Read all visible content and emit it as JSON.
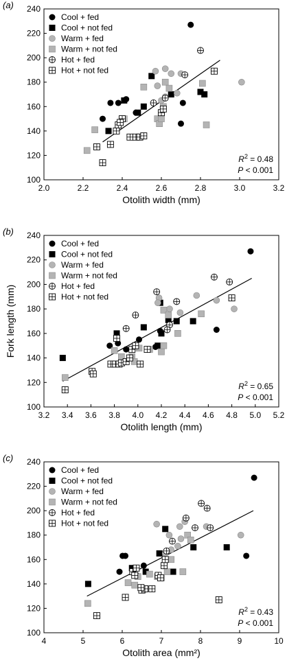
{
  "figure": {
    "panel_labels": [
      "(a)",
      "(b)",
      "(c)"
    ],
    "legend": [
      {
        "key": "cool_fed",
        "label": "Cool + fed"
      },
      {
        "key": "cool_not_fed",
        "label": "Cool + not fed"
      },
      {
        "key": "warm_fed",
        "label": "Warm + fed"
      },
      {
        "key": "warm_not_fed",
        "label": "Warm + not fed"
      },
      {
        "key": "hot_fed",
        "label": "Hot + fed"
      },
      {
        "key": "hot_not_fed",
        "label": "Hot + not fed"
      }
    ],
    "colors": {
      "cool": "#000000",
      "warm_fill": "#b4b4b4",
      "warm_stroke": "#8a8a8a",
      "hot_fill": "#ffffff"
    }
  },
  "chart_data": [
    {
      "type": "scatter",
      "panel": "(a)",
      "xlabel": "Otolith width (mm)",
      "ylabel": "",
      "xlim": [
        2.0,
        3.2
      ],
      "ylim": [
        100,
        240
      ],
      "xticks": [
        "2.0",
        "2.2",
        "2.4",
        "2.6",
        "2.8",
        "3.0",
        "3.2"
      ],
      "yticks": [
        "100",
        "120",
        "140",
        "160",
        "180",
        "200",
        "220",
        "240"
      ],
      "annotation": {
        "r2": "= 0.48",
        "p": "< 0.001"
      },
      "fit": {
        "x": [
          2.3,
          2.9
        ],
        "y": [
          131,
          198
        ]
      },
      "series": [
        {
          "key": "cool_fed",
          "x": [
            2.75,
            2.3,
            2.34,
            2.38,
            2.47,
            2.71,
            2.7,
            2.42
          ],
          "y": [
            227,
            150,
            163,
            163,
            155,
            163,
            146,
            166
          ]
        },
        {
          "key": "cool_not_fed",
          "x": [
            2.41,
            2.55,
            2.51,
            2.33,
            2.48,
            2.65,
            2.8,
            2.82
          ],
          "y": [
            165,
            185,
            160,
            140,
            155,
            170,
            172,
            170
          ]
        },
        {
          "key": "warm_fed",
          "x": [
            2.57,
            2.62,
            2.65,
            2.58,
            2.7,
            2.68,
            2.62,
            2.6,
            3.01
          ],
          "y": [
            189,
            191,
            187,
            177,
            187,
            171,
            168,
            165,
            180
          ]
        },
        {
          "key": "warm_not_fed",
          "x": [
            2.22,
            2.26,
            2.51,
            2.58,
            2.59,
            2.6,
            2.61,
            2.62,
            2.64,
            2.81,
            2.83,
            2.41
          ],
          "y": [
            124,
            141,
            176,
            150,
            146,
            150,
            160,
            180,
            175,
            179,
            145,
            150
          ]
        },
        {
          "key": "hot_fed",
          "x": [
            2.8,
            2.62,
            2.72,
            2.56
          ],
          "y": [
            206,
            167,
            186,
            163
          ]
        },
        {
          "key": "hot_not_fed",
          "x": [
            2.3,
            2.27,
            2.34,
            2.37,
            2.38,
            2.4,
            2.44,
            2.47,
            2.49,
            2.51,
            2.39,
            2.6,
            2.61,
            2.87
          ],
          "y": [
            114,
            127,
            129,
            140,
            145,
            150,
            135,
            135,
            135,
            136,
            147,
            155,
            158,
            189
          ]
        }
      ]
    },
    {
      "type": "scatter",
      "panel": "(b)",
      "xlabel": "Otolith length (mm)",
      "ylabel": "Fork length (mm)",
      "xlim": [
        3.2,
        5.2
      ],
      "ylim": [
        100,
        240
      ],
      "xticks": [
        "3.2",
        "3.4",
        "3.6",
        "3.8",
        "4.0",
        "4.2",
        "4.4",
        "4.6",
        "4.8",
        "5.0",
        "5.2"
      ],
      "yticks": [
        "100",
        "120",
        "140",
        "160",
        "180",
        "200",
        "220",
        "240"
      ],
      "annotation": {
        "r2": "= 0.65",
        "p": "< 0.001"
      },
      "fit": {
        "x": [
          3.36,
          4.97
        ],
        "y": [
          121,
          205
        ]
      },
      "series": [
        {
          "key": "cool_fed",
          "x": [
            4.96,
            3.76,
            3.9,
            4.01,
            4.15,
            4.67,
            3.83,
            4.19
          ],
          "y": [
            227,
            150,
            147,
            155,
            149,
            163,
            152,
            162
          ]
        },
        {
          "key": "cool_not_fed",
          "x": [
            3.36,
            3.82,
            4.05,
            4.2,
            4.26,
            4.33,
            4.47,
            4.17,
            4.19
          ],
          "y": [
            140,
            160,
            165,
            160,
            171,
            170,
            170,
            150,
            185
          ]
        },
        {
          "key": "warm_fed",
          "x": [
            4.18,
            4.27,
            4.36,
            4.5,
            4.67,
            4.82,
            4.17
          ],
          "y": [
            189,
            180,
            177,
            191,
            187,
            180,
            185
          ]
        },
        {
          "key": "warm_not_fed",
          "x": [
            3.38,
            3.8,
            3.95,
            4.01,
            4.1,
            4.2,
            4.22,
            4.26,
            4.34,
            4.54,
            3.97,
            4.22,
            3.86
          ],
          "y": [
            124,
            146,
            141,
            148,
            147,
            145,
            179,
            175,
            160,
            176,
            137,
            150,
            141
          ]
        },
        {
          "key": "hot_fed",
          "x": [
            4.65,
            4.78,
            4.16,
            4.33,
            4.27,
            3.98,
            3.9,
            4.25
          ],
          "y": [
            206,
            202,
            194,
            186,
            167,
            175,
            164,
            163
          ]
        },
        {
          "key": "hot_not_fed",
          "x": [
            3.38,
            3.61,
            3.62,
            3.77,
            3.81,
            3.84,
            3.86,
            3.9,
            3.93,
            3.95,
            3.98,
            4.02,
            4.08,
            4.8,
            3.82
          ],
          "y": [
            114,
            129,
            127,
            135,
            135,
            135,
            136,
            137,
            140,
            147,
            150,
            135,
            147,
            189,
            156
          ]
        }
      ]
    },
    {
      "type": "scatter",
      "panel": "(c)",
      "xlabel": "Otolith area (mm²)",
      "ylabel": "",
      "xlim": [
        4,
        10
      ],
      "ylim": [
        100,
        240
      ],
      "xticks": [
        "4",
        "5",
        "6",
        "7",
        "8",
        "9",
        "10"
      ],
      "yticks": [
        "100",
        "120",
        "140",
        "160",
        "180",
        "200",
        "220",
        "240"
      ],
      "annotation": {
        "r2": "= 0.43",
        "p": "< 0.001"
      },
      "fit": {
        "x": [
          5.1,
          9.35
        ],
        "y": [
          130,
          200
        ]
      },
      "series": [
        {
          "key": "cool_fed",
          "x": [
            9.37,
            5.93,
            6.01,
            6.08,
            6.55,
            9.17,
            6.37
          ],
          "y": [
            227,
            150,
            163,
            163,
            155,
            163,
            147
          ]
        },
        {
          "key": "cool_not_fed",
          "x": [
            5.13,
            6.25,
            6.6,
            7.1,
            7.3,
            7.82,
            8.67,
            6.95
          ],
          "y": [
            140,
            153,
            150,
            185,
            150,
            170,
            170,
            165
          ]
        },
        {
          "key": "warm_fed",
          "x": [
            6.88,
            7.2,
            7.47,
            7.6,
            8.15,
            9.03,
            7.5,
            7.42,
            7.25,
            7.1
          ],
          "y": [
            189,
            180,
            187,
            191,
            187,
            180,
            177,
            171,
            168,
            165
          ]
        },
        {
          "key": "warm_not_fed",
          "x": [
            5.12,
            6.15,
            6.32,
            6.52,
            6.9,
            7.0,
            7.15,
            7.55,
            7.67,
            7.75,
            7.25,
            6.4,
            6.7
          ],
          "y": [
            124,
            141,
            139,
            135,
            146,
            145,
            150,
            150,
            180,
            176,
            160,
            146,
            148
          ]
        },
        {
          "key": "hot_fed",
          "x": [
            8.02,
            8.17,
            7.86,
            8.25,
            7.63,
            7.13,
            7.28
          ],
          "y": [
            206,
            202,
            186,
            186,
            194,
            167,
            175
          ]
        },
        {
          "key": "hot_not_fed",
          "x": [
            5.35,
            6.08,
            6.27,
            6.36,
            6.5,
            6.58,
            6.76,
            6.92,
            6.98,
            7.07,
            7.1,
            8.47,
            6.48,
            6.32
          ],
          "y": [
            114,
            129,
            150,
            153,
            135,
            136,
            136,
            147,
            145,
            155,
            160,
            127,
            137,
            147
          ]
        }
      ]
    }
  ]
}
